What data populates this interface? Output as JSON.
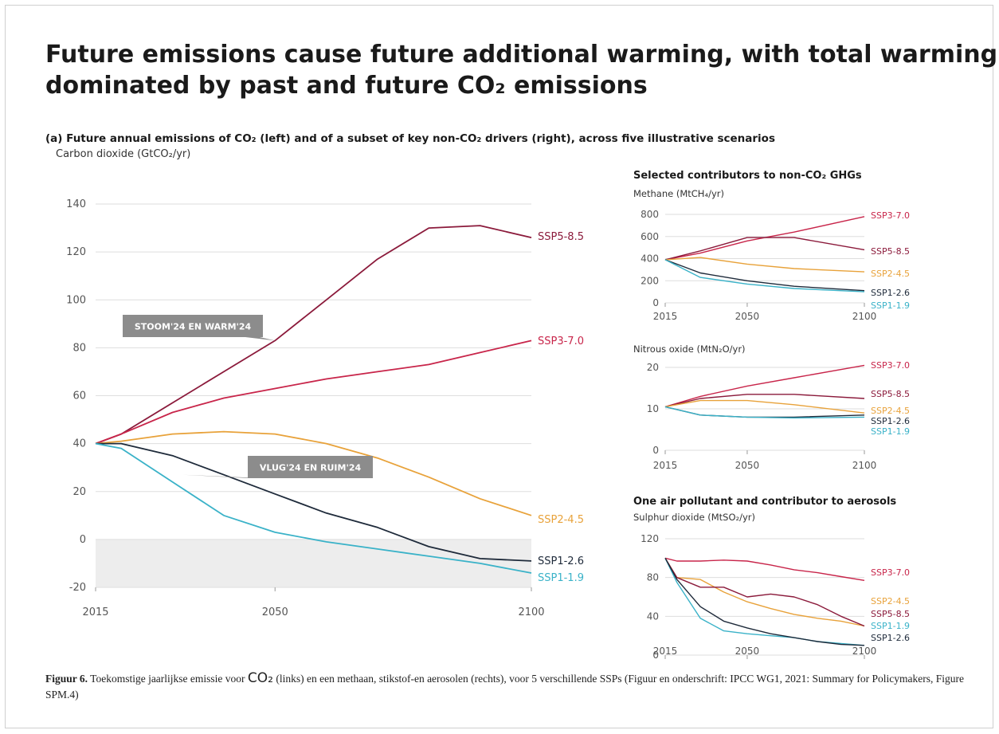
{
  "figure": {
    "title_line1": "Future emissions cause future additional warming, with total warming",
    "title_line2": "dominated by past and future CO₂ emissions",
    "subtitle": "(a) Future annual emissions of CO₂ (left) and of a subset of key non-CO₂ drivers (right), across five illustrative scenarios",
    "right_group_title_1": "Selected contributors to non-CO₂ GHGs",
    "right_group_title_2": "One air pollutant and contributor to aerosols"
  },
  "annotations": [
    {
      "text": "STOOM'24 EN WARM'24",
      "color": "#8c8c8c",
      "points_to": {
        "x": 2050,
        "y": 83
      }
    },
    {
      "text": "VLUG'24 EN RUIM'24",
      "color": "#8c8c8c",
      "points_to": {
        "x": 2032,
        "y": 27
      }
    }
  ],
  "caption": {
    "label": "Figuur 6.",
    "text_before": " Toekomstige jaarlijkse emissie voor ",
    "co2": "CO₂",
    "text_after": " (links) en een methaan, stikstof-en aerosolen (rechts), voor 5 verschillende SSPs (Figuur en onderschrift: IPCC WG1, 2021: Summary for Policymakers, Figure SPM.4)"
  },
  "chart_data": [
    {
      "type": "line",
      "id": "co2",
      "ylabel": "Carbon dioxide (GtCO₂/yr)",
      "xlim": [
        2015,
        2100
      ],
      "ylim": [
        -20,
        140
      ],
      "xticks": [
        2015,
        2050,
        2100
      ],
      "yticks": [
        -20,
        0,
        20,
        40,
        60,
        80,
        100,
        120,
        140
      ],
      "grid": true,
      "x": [
        2015,
        2020,
        2030,
        2040,
        2050,
        2060,
        2070,
        2080,
        2090,
        2100
      ],
      "series": [
        {
          "name": "SSP5-8.5",
          "color": "#8b1a3b",
          "values": [
            40,
            44,
            57,
            70,
            83,
            100,
            117,
            130,
            131,
            126
          ]
        },
        {
          "name": "SSP3-7.0",
          "color": "#c8254a",
          "values": [
            40,
            44,
            53,
            59,
            63,
            67,
            70,
            73,
            78,
            83
          ]
        },
        {
          "name": "SSP2-4.5",
          "color": "#e8a23a",
          "values": [
            40,
            41,
            44,
            45,
            44,
            40,
            34,
            26,
            17,
            10
          ]
        },
        {
          "name": "SSP1-2.6",
          "color": "#1e2a3a",
          "values": [
            40,
            40,
            35,
            27,
            19,
            11,
            5,
            -3,
            -8,
            -9
          ]
        },
        {
          "name": "SSP1-1.9",
          "color": "#3ab2c8",
          "values": [
            40,
            38,
            24,
            10,
            3,
            -1,
            -4,
            -7,
            -10,
            -14
          ]
        }
      ]
    },
    {
      "type": "line",
      "id": "methane",
      "ylabel": "Methane (MtCH₄/yr)",
      "xlim": [
        2015,
        2100
      ],
      "ylim": [
        0,
        800
      ],
      "xticks": [
        2015,
        2050,
        2100
      ],
      "yticks": [
        0,
        200,
        400,
        600,
        800
      ],
      "grid": true,
      "x": [
        2015,
        2030,
        2050,
        2070,
        2100
      ],
      "series": [
        {
          "name": "SSP3-7.0",
          "color": "#c8254a",
          "values": [
            390,
            450,
            560,
            640,
            780
          ]
        },
        {
          "name": "SSP5-8.5",
          "color": "#8b1a3b",
          "values": [
            390,
            470,
            590,
            590,
            480
          ]
        },
        {
          "name": "SSP2-4.5",
          "color": "#e8a23a",
          "values": [
            390,
            410,
            350,
            310,
            280
          ]
        },
        {
          "name": "SSP1-2.6",
          "color": "#1e2a3a",
          "values": [
            390,
            270,
            200,
            150,
            110
          ]
        },
        {
          "name": "SSP1-1.9",
          "color": "#3ab2c8",
          "values": [
            390,
            230,
            170,
            130,
            100
          ]
        }
      ]
    },
    {
      "type": "line",
      "id": "nitrous",
      "ylabel": "Nitrous oxide (MtN₂O/yr)",
      "xlim": [
        2015,
        2100
      ],
      "ylim": [
        0,
        20
      ],
      "xticks": [
        2015,
        2050,
        2100
      ],
      "yticks": [
        0,
        10,
        20
      ],
      "grid": true,
      "x": [
        2015,
        2030,
        2050,
        2070,
        2100
      ],
      "series": [
        {
          "name": "SSP3-7.0",
          "color": "#c8254a",
          "values": [
            10.5,
            13,
            15.5,
            17.5,
            20.5
          ]
        },
        {
          "name": "SSP5-8.5",
          "color": "#8b1a3b",
          "values": [
            10.5,
            12.5,
            13.5,
            13.5,
            12.5
          ]
        },
        {
          "name": "SSP2-4.5",
          "color": "#e8a23a",
          "values": [
            10.5,
            12,
            12,
            11,
            9
          ]
        },
        {
          "name": "SSP1-2.6",
          "color": "#1e2a3a",
          "values": [
            10.5,
            8.5,
            8,
            8,
            8.5
          ]
        },
        {
          "name": "SSP1-1.9",
          "color": "#3ab2c8",
          "values": [
            10.5,
            8.5,
            8,
            7.8,
            8
          ]
        }
      ]
    },
    {
      "type": "line",
      "id": "sulphur",
      "ylabel": "Sulphur dioxide (MtSO₂/yr)",
      "xlim": [
        2015,
        2100
      ],
      "ylim": [
        0,
        120
      ],
      "xticks": [
        2015,
        2050,
        2100
      ],
      "yticks": [
        0,
        40,
        80,
        120
      ],
      "grid": true,
      "x": [
        2015,
        2020,
        2030,
        2040,
        2050,
        2060,
        2070,
        2080,
        2090,
        2100
      ],
      "series": [
        {
          "name": "SSP3-7.0",
          "color": "#c8254a",
          "values": [
            100,
            97,
            97,
            98,
            97,
            93,
            88,
            85,
            81,
            77
          ]
        },
        {
          "name": "SSP2-4.5",
          "color": "#e8a23a",
          "values": [
            100,
            80,
            78,
            65,
            55,
            48,
            42,
            38,
            35,
            30
          ]
        },
        {
          "name": "SSP5-8.5",
          "color": "#8b1a3b",
          "values": [
            100,
            80,
            70,
            70,
            60,
            63,
            60,
            52,
            40,
            30
          ]
        },
        {
          "name": "SSP1-1.9",
          "color": "#3ab2c8",
          "values": [
            100,
            75,
            38,
            25,
            22,
            20,
            18,
            14,
            12,
            10
          ]
        },
        {
          "name": "SSP1-2.6",
          "color": "#1e2a3a",
          "values": [
            100,
            78,
            50,
            35,
            28,
            22,
            18,
            14,
            11,
            10
          ]
        }
      ]
    }
  ]
}
